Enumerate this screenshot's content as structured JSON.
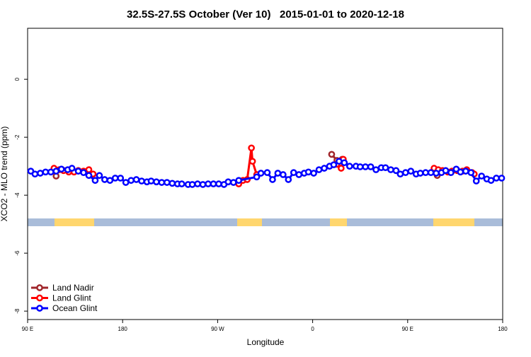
{
  "chart_data": {
    "type": "line",
    "title": "32.5S-27.5S October (Ver 10)   2015-01-01 to 2020-12-18",
    "xlabel": "Longitude",
    "ylabel": "XCO2 - MLO trend (ppm)",
    "xlim": [
      90,
      540
    ],
    "xticks": [
      {
        "value": 90,
        "label": "90 E"
      },
      {
        "value": 180,
        "label": "180"
      },
      {
        "value": 270,
        "label": "90 W"
      },
      {
        "value": 360,
        "label": "0"
      },
      {
        "value": 450,
        "label": "90 E"
      },
      {
        "value": 540,
        "label": "180"
      }
    ],
    "ylim": [
      -8.29,
      1.76
    ],
    "yticks": [
      0,
      -2,
      -4,
      -6,
      -8
    ],
    "legend": "bottom-left",
    "series": [
      {
        "name": "Land Nadir",
        "color": "#a0262b",
        "x": [
          117,
          250,
          378,
          383,
          388,
          430,
          478
        ],
        "values": [
          -3.34,
          null,
          -2.59,
          -2.8,
          -2.76,
          null,
          -3.32
        ]
      },
      {
        "name": "Land Glint",
        "color": "#ff0000",
        "x": [
          115,
          120,
          124,
          129,
          134,
          138,
          143,
          148,
          152,
          220,
          290,
          294,
          298,
          302,
          303,
          307,
          340,
          383,
          387,
          389,
          430,
          475,
          479,
          483,
          488,
          492,
          497,
          502,
          506,
          511,
          513
        ],
        "values": [
          -3.07,
          -3.12,
          -3.15,
          -3.2,
          -3.2,
          -3.15,
          -3.17,
          -3.12,
          -3.27,
          null,
          -3.61,
          -3.49,
          -3.46,
          -2.37,
          -2.83,
          -3.29,
          null,
          -2.93,
          -3.07,
          -2.76,
          null,
          -3.07,
          -3.12,
          -3.15,
          -3.2,
          -3.17,
          -3.15,
          -3.17,
          -3.12,
          -3.22,
          -3.27
        ]
      },
      {
        "name": "Ocean Glint",
        "color": "#0000ff",
        "x": [
          93,
          97,
          102,
          107,
          112,
          117,
          122,
          128,
          132,
          138,
          143,
          148,
          154,
          158,
          163,
          168,
          173,
          178,
          183,
          188,
          193,
          198,
          203,
          207,
          212,
          217,
          222,
          227,
          232,
          236,
          242,
          246,
          251,
          256,
          261,
          266,
          271,
          276,
          280,
          285,
          290,
          307,
          311,
          317,
          322,
          327,
          332,
          337,
          342,
          347,
          352,
          356,
          361,
          366,
          371,
          376,
          380,
          385,
          390,
          395,
          401,
          405,
          410,
          415,
          420,
          425,
          429,
          434,
          439,
          443,
          448,
          453,
          458,
          462,
          467,
          472,
          477,
          482,
          486,
          491,
          496,
          500,
          505,
          510,
          515,
          520,
          525,
          529,
          534,
          539
        ],
        "values": [
          -3.17,
          -3.27,
          -3.24,
          -3.2,
          -3.2,
          -3.17,
          -3.1,
          -3.12,
          -3.07,
          -3.17,
          -3.22,
          -3.32,
          -3.49,
          -3.32,
          -3.46,
          -3.49,
          -3.41,
          -3.41,
          -3.56,
          -3.49,
          -3.46,
          -3.51,
          -3.54,
          -3.51,
          -3.54,
          -3.56,
          -3.56,
          -3.59,
          -3.61,
          -3.61,
          -3.63,
          -3.63,
          -3.61,
          -3.63,
          -3.61,
          -3.61,
          -3.61,
          -3.63,
          -3.54,
          -3.56,
          -3.49,
          -3.37,
          -3.24,
          -3.22,
          -3.46,
          -3.24,
          -3.29,
          -3.46,
          -3.22,
          -3.29,
          -3.24,
          -3.2,
          -3.24,
          -3.12,
          -3.07,
          -3.0,
          -2.95,
          -2.83,
          -2.88,
          -3.0,
          -3.0,
          -3.02,
          -3.02,
          -3.02,
          -3.12,
          -3.05,
          -3.05,
          -3.12,
          -3.15,
          -3.27,
          -3.22,
          -3.17,
          -3.27,
          -3.24,
          -3.22,
          -3.22,
          -3.24,
          -3.22,
          -3.15,
          -3.22,
          -3.1,
          -3.2,
          -3.17,
          -3.22,
          -3.51,
          -3.34,
          -3.44,
          -3.49,
          -3.41,
          -3.41
        ]
      }
    ]
  }
}
